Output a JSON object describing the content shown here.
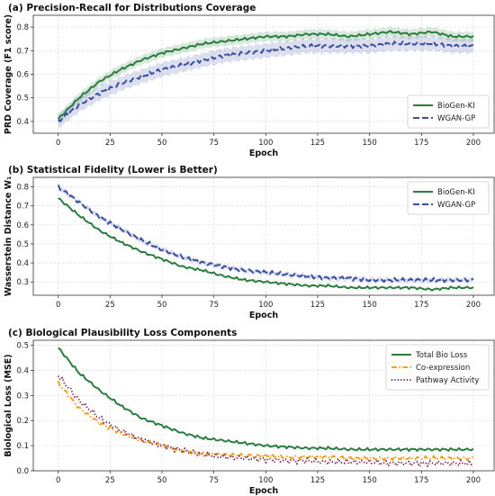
{
  "chart_data": [
    {
      "type": "line",
      "title": "(a) Precision-Recall for Distributions Coverage",
      "xlabel": "Epoch",
      "ylabel": "PRD Coverage (F1 score)",
      "xlim": [
        -12,
        210
      ],
      "ylim": [
        0.35,
        0.85
      ],
      "xticks": [
        0,
        25,
        50,
        75,
        100,
        125,
        150,
        175,
        200
      ],
      "yticks": [
        0.4,
        0.5,
        0.6,
        0.7,
        0.8
      ],
      "grid": true,
      "legend_position": "bottom-right",
      "x": [
        0,
        10,
        20,
        30,
        40,
        50,
        60,
        70,
        80,
        90,
        100,
        110,
        120,
        130,
        140,
        150,
        160,
        170,
        180,
        190,
        200
      ],
      "series": [
        {
          "name": "BioGen-KI",
          "style": "solid",
          "color": "#2a7d3f",
          "band": 0.02,
          "values": [
            0.41,
            0.5,
            0.57,
            0.62,
            0.66,
            0.69,
            0.71,
            0.73,
            0.74,
            0.75,
            0.76,
            0.76,
            0.77,
            0.77,
            0.76,
            0.77,
            0.78,
            0.77,
            0.78,
            0.76,
            0.76
          ]
        },
        {
          "name": "WGAN-GP",
          "style": "dashed",
          "color": "#3b4ea0",
          "band": 0.03,
          "values": [
            0.4,
            0.47,
            0.52,
            0.56,
            0.59,
            0.62,
            0.64,
            0.66,
            0.68,
            0.69,
            0.7,
            0.71,
            0.72,
            0.72,
            0.72,
            0.72,
            0.73,
            0.73,
            0.73,
            0.72,
            0.72
          ]
        }
      ]
    },
    {
      "type": "line",
      "title": "(b) Statistical Fidelity (Lower is Better)",
      "xlabel": "Epoch",
      "ylabel": "Wasserstein Distance W₁",
      "xlim": [
        -12,
        210
      ],
      "ylim": [
        0.23,
        0.85
      ],
      "xticks": [
        0,
        25,
        50,
        75,
        100,
        125,
        150,
        175,
        200
      ],
      "yticks": [
        0.3,
        0.4,
        0.5,
        0.6,
        0.7,
        0.8
      ],
      "grid": true,
      "legend_position": "top-right",
      "x": [
        0,
        10,
        20,
        30,
        40,
        50,
        60,
        70,
        80,
        90,
        100,
        110,
        120,
        130,
        140,
        150,
        160,
        170,
        180,
        190,
        200
      ],
      "series": [
        {
          "name": "BioGen-KI",
          "style": "solid",
          "color": "#2a7d3f",
          "band": 0,
          "values": [
            0.74,
            0.65,
            0.57,
            0.51,
            0.46,
            0.42,
            0.38,
            0.36,
            0.33,
            0.31,
            0.3,
            0.29,
            0.28,
            0.28,
            0.27,
            0.27,
            0.27,
            0.27,
            0.26,
            0.27,
            0.27
          ]
        },
        {
          "name": "WGAN-GP",
          "style": "dashed",
          "color": "#3b4ea0",
          "band": 0.012,
          "values": [
            0.8,
            0.72,
            0.64,
            0.58,
            0.52,
            0.47,
            0.43,
            0.4,
            0.38,
            0.36,
            0.35,
            0.34,
            0.33,
            0.32,
            0.32,
            0.31,
            0.31,
            0.31,
            0.31,
            0.31,
            0.31
          ]
        }
      ]
    },
    {
      "type": "line",
      "title": "(c) Biological Plausibility Loss Components",
      "xlabel": "Epoch",
      "ylabel": "Biological Loss (MSE)",
      "xlim": [
        -12,
        210
      ],
      "ylim": [
        0,
        0.52
      ],
      "xticks": [
        0,
        25,
        50,
        75,
        100,
        125,
        150,
        175,
        200
      ],
      "yticks": [
        0.0,
        0.1,
        0.2,
        0.3,
        0.4,
        0.5
      ],
      "grid": true,
      "legend_position": "top-right",
      "x": [
        0,
        10,
        20,
        30,
        40,
        50,
        60,
        70,
        80,
        90,
        100,
        110,
        120,
        130,
        140,
        150,
        160,
        170,
        180,
        190,
        200
      ],
      "series": [
        {
          "name": "Total Bio Loss",
          "style": "solid",
          "color": "#2a7d3f",
          "band": 0,
          "values": [
            0.49,
            0.39,
            0.32,
            0.26,
            0.21,
            0.18,
            0.15,
            0.13,
            0.12,
            0.11,
            0.1,
            0.095,
            0.09,
            0.09,
            0.085,
            0.085,
            0.085,
            0.085,
            0.085,
            0.085,
            0.085
          ]
        },
        {
          "name": "Co-expression",
          "style": "dashdot",
          "color": "#f0a020",
          "band": 0,
          "values": [
            0.35,
            0.25,
            0.19,
            0.15,
            0.12,
            0.1,
            0.08,
            0.07,
            0.065,
            0.06,
            0.06,
            0.055,
            0.055,
            0.055,
            0.05,
            0.05,
            0.05,
            0.05,
            0.05,
            0.05,
            0.05
          ]
        },
        {
          "name": "Pathway Activity",
          "style": "dotted",
          "color": "#7a1f4f",
          "band": 0,
          "values": [
            0.38,
            0.28,
            0.21,
            0.16,
            0.125,
            0.1,
            0.08,
            0.065,
            0.055,
            0.05,
            0.045,
            0.04,
            0.04,
            0.035,
            0.035,
            0.035,
            0.03,
            0.03,
            0.03,
            0.03,
            0.03
          ]
        }
      ]
    }
  ]
}
